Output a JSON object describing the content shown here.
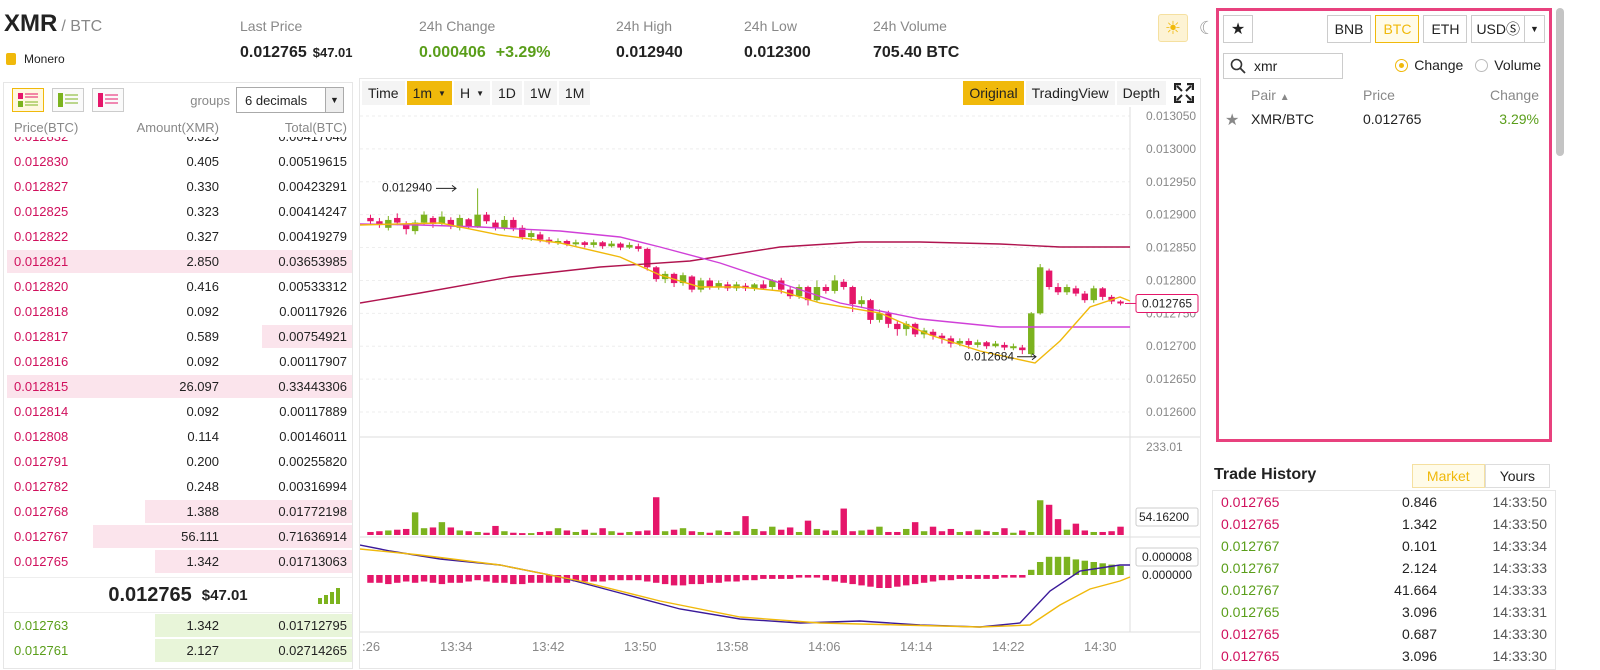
{
  "header": {
    "base": "XMR",
    "quote": "/ BTC",
    "coin_name": "Monero",
    "stats": [
      {
        "label": "Last Price",
        "value": "0.012765",
        "sub": "$47.01",
        "color": "default"
      },
      {
        "label": "24h Change",
        "value": "0.000406",
        "sub": "+3.29%",
        "color": "green"
      },
      {
        "label": "24h High",
        "value": "0.012940",
        "sub": "",
        "color": "default"
      },
      {
        "label": "24h Low",
        "value": "0.012300",
        "sub": "",
        "color": "default"
      },
      {
        "label": "24h Volume",
        "value": "705.40 BTC",
        "sub": "",
        "color": "default"
      }
    ]
  },
  "orderbook": {
    "groups_label": "groups",
    "groups_value": "6 decimals",
    "headers": [
      "Price(BTC)",
      "Amount(XMR)",
      "Total(BTC)"
    ],
    "asks": [
      {
        "price": "0.012832",
        "amount": "0.325",
        "total": "0.00417040",
        "depth": 0.0
      },
      {
        "price": "0.012830",
        "amount": "0.405",
        "total": "0.00519615",
        "depth": 0.0
      },
      {
        "price": "0.012827",
        "amount": "0.330",
        "total": "0.00423291",
        "depth": 0.0
      },
      {
        "price": "0.012825",
        "amount": "0.323",
        "total": "0.00414247",
        "depth": 0.0
      },
      {
        "price": "0.012822",
        "amount": "0.327",
        "total": "0.00419279",
        "depth": 0.0
      },
      {
        "price": "0.012821",
        "amount": "2.850",
        "total": "0.03653985",
        "depth": 1.0
      },
      {
        "price": "0.012820",
        "amount": "0.416",
        "total": "0.00533312",
        "depth": 0.0
      },
      {
        "price": "0.012818",
        "amount": "0.092",
        "total": "0.00117926",
        "depth": 0.0
      },
      {
        "price": "0.012817",
        "amount": "0.589",
        "total": "0.00754921",
        "depth": 0.26
      },
      {
        "price": "0.012816",
        "amount": "0.092",
        "total": "0.00117907",
        "depth": 0.0
      },
      {
        "price": "0.012815",
        "amount": "26.097",
        "total": "0.33443306",
        "depth": 1.0
      },
      {
        "price": "0.012814",
        "amount": "0.092",
        "total": "0.00117889",
        "depth": 0.0
      },
      {
        "price": "0.012808",
        "amount": "0.114",
        "total": "0.00146011",
        "depth": 0.0
      },
      {
        "price": "0.012791",
        "amount": "0.200",
        "total": "0.00255820",
        "depth": 0.0
      },
      {
        "price": "0.012782",
        "amount": "0.248",
        "total": "0.00316994",
        "depth": 0.0
      },
      {
        "price": "0.012768",
        "amount": "1.388",
        "total": "0.01772198",
        "depth": 0.6
      },
      {
        "price": "0.012767",
        "amount": "56.111",
        "total": "0.71636914",
        "depth": 0.75
      },
      {
        "price": "0.012765",
        "amount": "1.342",
        "total": "0.01713063",
        "depth": 0.57
      }
    ],
    "last_price": "0.012765",
    "last_usd": "$47.01",
    "bids": [
      {
        "price": "0.012763",
        "amount": "1.342",
        "total": "0.01712795",
        "depth": 0.57
      },
      {
        "price": "0.012761",
        "amount": "2.127",
        "total": "0.02714265",
        "depth": 0.57
      }
    ]
  },
  "chart": {
    "toolbar": [
      "Time",
      "1m",
      "H",
      "1D",
      "1W",
      "1M"
    ],
    "views": [
      "Original",
      "TradingView",
      "Depth"
    ],
    "price_axis": [
      "0.013050",
      "0.013000",
      "0.012950",
      "0.012900",
      "0.012850",
      "0.012800",
      "0.012750",
      "0.012700",
      "0.012650",
      "0.012600"
    ],
    "current_tag": "0.012765",
    "high_label": "0.012940",
    "low_label": "0.012684",
    "vol_max": "233.01",
    "vol_current": "54.16200",
    "macd_top": "0.000008",
    "macd_zero": "0.000000",
    "time_axis": [
      ":26",
      "13:34",
      "13:42",
      "13:50",
      "13:58",
      "14:06",
      "14:14",
      "14:22",
      "14:30"
    ],
    "colors": {
      "up": "#7cb31f",
      "down": "#e5166a",
      "ma_slow": "#b0144f",
      "ma_mid": "#d040d8",
      "ma_fast": "#f0b90b",
      "macd1": "#3b1a9a"
    }
  },
  "market": {
    "tabs": [
      "BNB",
      "BTC",
      "ETH"
    ],
    "usd_tab": "USDⓈ",
    "active_tab": "BTC",
    "search_value": "xmr",
    "sort_options": [
      "Change",
      "Volume"
    ],
    "headers": [
      "Pair",
      "Price",
      "Change"
    ],
    "rows": [
      {
        "pair": "XMR/BTC",
        "price": "0.012765",
        "change": "3.29%"
      }
    ]
  },
  "trade_history": {
    "title": "Trade History",
    "tabs": [
      "Market",
      "Yours"
    ],
    "rows": [
      {
        "price": "0.012765",
        "amount": "0.846",
        "time": "14:33:50",
        "side": "sell"
      },
      {
        "price": "0.012765",
        "amount": "1.342",
        "time": "14:33:50",
        "side": "sell"
      },
      {
        "price": "0.012767",
        "amount": "0.101",
        "time": "14:33:34",
        "side": "buy"
      },
      {
        "price": "0.012767",
        "amount": "2.124",
        "time": "14:33:33",
        "side": "buy"
      },
      {
        "price": "0.012767",
        "amount": "41.664",
        "time": "14:33:33",
        "side": "buy"
      },
      {
        "price": "0.012765",
        "amount": "3.096",
        "time": "14:33:31",
        "side": "buy"
      },
      {
        "price": "0.012765",
        "amount": "0.687",
        "time": "14:33:30",
        "side": "sell"
      },
      {
        "price": "0.012765",
        "amount": "3.096",
        "time": "14:33:30",
        "side": "sell"
      }
    ]
  }
}
